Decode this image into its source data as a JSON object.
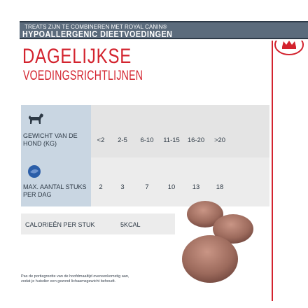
{
  "banner": {
    "line1": "TREATS ZIJN TE COMBINEREN MET ROYAL CANIN®",
    "line2": "HYPOALLERGENIC DIEETVOEDINGEN"
  },
  "brand": {
    "logo": "crown-icon"
  },
  "heading": {
    "title": "DAGELIJKSE",
    "subtitle": "VOEDINGSRICHTLIJNEN"
  },
  "table": {
    "rows": [
      {
        "icon": "dog-icon",
        "label": "GEWICHT VAN DE HOND (KG)",
        "values": [
          "<2",
          "2-5",
          "6-10",
          "11-15",
          "16-20",
          ">20"
        ]
      },
      {
        "icon": "kibble-icon",
        "label": "MAX. AANTAL STUKS PER DAG",
        "values": [
          "2",
          "3",
          "7",
          "10",
          "13",
          "18"
        ]
      }
    ],
    "calories": {
      "label": "CALORIEËN PER STUK",
      "value": "5KCAL"
    }
  },
  "footnote": "Pas de portiegrootte van de hoofdmaaltijd overeenkomstig aan, zodat je huisdier een gezond lichaamsgewicht behoudt.",
  "colors": {
    "brand_red": "#d3232e",
    "banner": "#5b6b7c",
    "label_panel": "#c9d6e2",
    "cell_panel": "#e4e4e4"
  }
}
